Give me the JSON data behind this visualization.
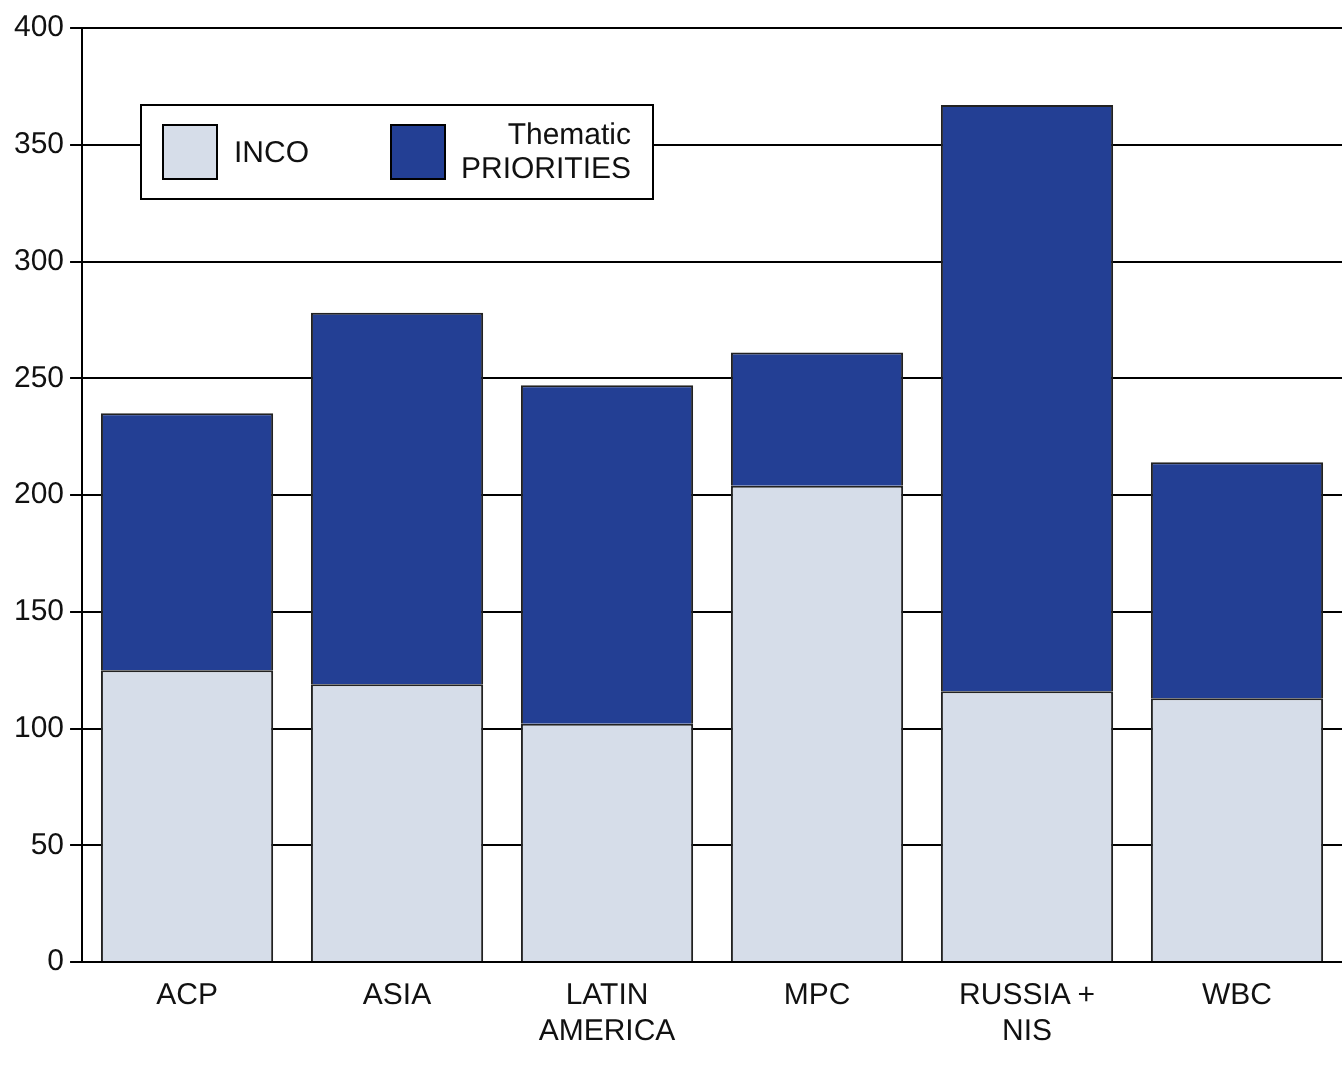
{
  "chart_data": {
    "type": "bar",
    "stacked": true,
    "categories": [
      "ACP",
      "ASIA",
      "LATIN\nAMERICA",
      "MPC",
      "RUSSIA +\nNIS",
      "WBC"
    ],
    "series": [
      {
        "name": "INCO",
        "color": "#d6dde9",
        "values": [
          125,
          119,
          102,
          204,
          116,
          113
        ]
      },
      {
        "name": "Thematic\nPRIORITIES",
        "color": "#233f94",
        "values": [
          110,
          159,
          145,
          57,
          251,
          101
        ]
      }
    ],
    "ylim": [
      0,
      400
    ],
    "yticks": [
      0,
      50,
      100,
      150,
      200,
      250,
      300,
      350,
      400
    ],
    "grid": "y",
    "legend": "top left"
  }
}
